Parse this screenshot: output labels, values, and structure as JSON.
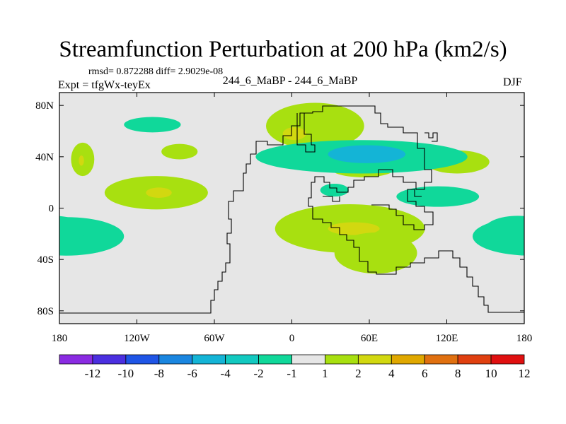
{
  "chart_data": {
    "type": "heatmap",
    "title": "Streamfunction Perturbation at 200 hPa (km2/s)",
    "stats_text": "rmsd= 0.872288 diff= 2.9029e-08",
    "subtitle": "244_6_MaBP - 244_6_MaBP",
    "left_label": "Expt = tfgWx-teyEx",
    "right_label": "DJF",
    "x_axis": {
      "range": [
        -180,
        180
      ],
      "tick_values": [
        -180,
        -120,
        -60,
        0,
        60,
        120,
        180
      ],
      "tick_labels": [
        "180",
        "120W",
        "60W",
        "0",
        "60E",
        "120E",
        "180"
      ]
    },
    "y_axis": {
      "range": [
        -90,
        90
      ],
      "tick_values": [
        80,
        40,
        0,
        -40,
        -80
      ],
      "tick_labels": [
        "80N",
        "40N",
        "0",
        "40S",
        "80S"
      ]
    },
    "colorbar": {
      "labels": [
        "-12",
        "-10",
        "-8",
        "-6",
        "-4",
        "-2",
        "-1",
        "1",
        "2",
        "4",
        "6",
        "8",
        "10",
        "12"
      ],
      "colors": [
        "#8a2be2",
        "#4b2fe0",
        "#1f55e6",
        "#1a86e0",
        "#14b4d6",
        "#12c9c0",
        "#10d89a",
        "#e6e6e6",
        "#a8e010",
        "#d2d810",
        "#e0a800",
        "#e07010",
        "#e04010",
        "#e01010"
      ]
    },
    "colors": {
      "background": "#e6e6e6",
      "pos1": "#a8e010",
      "pos2": "#d2d810",
      "neg1": "#10d89a",
      "neg2": "#14b4d6"
    },
    "features": [
      {
        "sign": "pos",
        "level": "1-2",
        "lon": -162,
        "lat": 38,
        "dlon": 9,
        "dlat": 13
      },
      {
        "sign": "pos",
        "level": "2-4",
        "lon": -163,
        "lat": 37,
        "dlon": 2,
        "dlat": 4
      },
      {
        "sign": "pos",
        "level": "1-2",
        "lon": -105,
        "lat": 12,
        "dlon": 40,
        "dlat": 13
      },
      {
        "sign": "pos",
        "level": "2-4",
        "lon": -103,
        "lat": 12,
        "dlon": 10,
        "dlat": 4
      },
      {
        "sign": "pos",
        "level": "1-2",
        "lon": -87,
        "lat": 44,
        "dlon": 14,
        "dlat": 6
      },
      {
        "sign": "pos",
        "level": "1-2",
        "lon": 18,
        "lat": 64,
        "dlon": 38,
        "dlat": 18
      },
      {
        "sign": "pos",
        "level": "2-4",
        "lon": 2,
        "lat": 58,
        "dlon": 9,
        "dlat": 5
      },
      {
        "sign": "pos",
        "level": "1-2",
        "lon": 55,
        "lat": 31,
        "dlon": 25,
        "dlat": 7
      },
      {
        "sign": "pos",
        "level": "2-4",
        "lon": 60,
        "lat": 32,
        "dlon": 4,
        "dlat": 3
      },
      {
        "sign": "pos",
        "level": "1-2",
        "lon": 128,
        "lat": 36,
        "dlon": 25,
        "dlat": 9
      },
      {
        "sign": "pos",
        "level": "1-2",
        "lon": 45,
        "lat": -16,
        "dlon": 58,
        "dlat": 19
      },
      {
        "sign": "pos",
        "level": "2-4",
        "lon": 48,
        "lat": -16,
        "dlon": 20,
        "dlat": 5
      },
      {
        "sign": "pos",
        "level": "1-2",
        "lon": 65,
        "lat": -35,
        "dlon": 32,
        "dlat": 16
      },
      {
        "sign": "neg",
        "level": "-1 to -2",
        "lon": -175,
        "lat": -22,
        "dlon": 45,
        "dlat": 15
      },
      {
        "sign": "neg",
        "level": "-2 to -4",
        "lon": -175,
        "lat": -21,
        "dlon": 11,
        "dlat": 5
      },
      {
        "sign": "neg",
        "level": "-1 to -2",
        "lon": -108,
        "lat": 65,
        "dlon": 22,
        "dlat": 6
      },
      {
        "sign": "neg",
        "level": "-1 to -2",
        "lon": 54,
        "lat": 40,
        "dlon": 82,
        "dlat": 13
      },
      {
        "sign": "neg",
        "level": "-2 to -4",
        "lon": 58,
        "lat": 42,
        "dlon": 30,
        "dlat": 7
      },
      {
        "sign": "neg",
        "level": "-1 to -2",
        "lon": 33,
        "lat": 14,
        "dlon": 11,
        "dlat": 5
      },
      {
        "sign": "neg",
        "level": "-1 to -2",
        "lon": 113,
        "lat": 9,
        "dlon": 32,
        "dlat": 8
      },
      {
        "sign": "neg",
        "level": "-1 to -2",
        "lon": 175,
        "lat": -17,
        "dlon": 26,
        "dlat": 11
      }
    ]
  }
}
